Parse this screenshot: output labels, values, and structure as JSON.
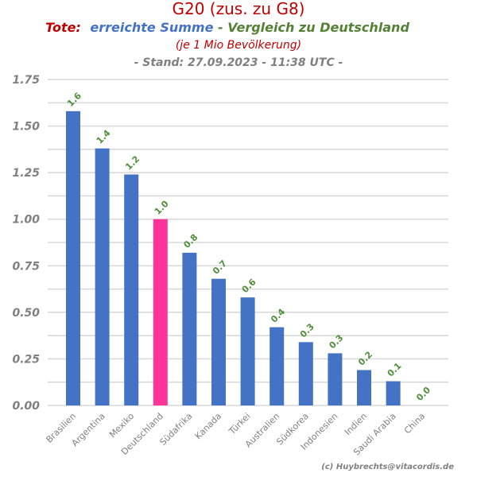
{
  "header": {
    "title": "G20 (zus. zu G8)",
    "subtitle_part1": "Tote:",
    "subtitle_part2": "erreichte Summe",
    "subtitle_part3": " - Vergleich zu Deutschland",
    "note": "(je 1 Mio Bevölkerung)",
    "stand": "- Stand: 27.09.2023 - 11:38 UTC -"
  },
  "footer": {
    "credit": "(c) Huybrechts@vitacordis.de"
  },
  "colors": {
    "bar": "#4472c4",
    "highlight": "#ff3399",
    "red": "#c00000",
    "blue": "#4472c4",
    "green": "#538135",
    "grid": "#d9d9d9",
    "label": "#538135"
  },
  "chart_data": {
    "type": "bar",
    "categories": [
      "Brasilien",
      "Argentina",
      "Mexiko",
      "Deutschland",
      "Südafrika",
      "Kanada",
      "Türkei",
      "Australien",
      "Südkorea",
      "Indonesien",
      "Indien",
      "Saudi Arabia",
      "China"
    ],
    "values": [
      1.58,
      1.38,
      1.24,
      1.0,
      0.82,
      0.68,
      0.58,
      0.42,
      0.34,
      0.28,
      0.19,
      0.13,
      0.0
    ],
    "data_labels": [
      "1.6",
      "1.4",
      "1.2",
      "1.0",
      "0.8",
      "0.7",
      "0.6",
      "0.4",
      "0.3",
      "0.3",
      "0.2",
      "0.1",
      "0.0"
    ],
    "highlight_category": "Deutschland",
    "ylim": [
      0,
      1.75
    ],
    "yticks": [
      0,
      0.25,
      0.5,
      0.75,
      1.0,
      1.25,
      1.5,
      1.75
    ],
    "ytick_labels": [
      "0.00",
      "0.25",
      "0.50",
      "0.75",
      "1.00",
      "1.25",
      "1.50",
      "1.75"
    ],
    "grid": true,
    "xlabel": "",
    "ylabel": ""
  }
}
